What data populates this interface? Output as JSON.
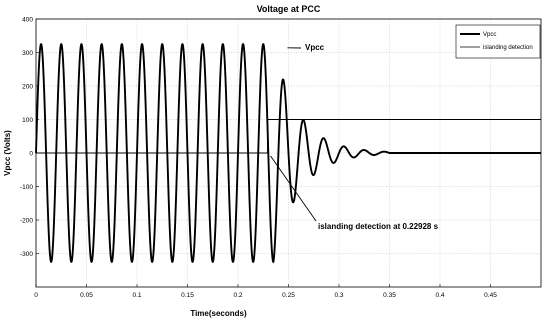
{
  "chart_data": {
    "type": "line",
    "title": "Voltage at PCC",
    "xlabel": "Time(seconds)",
    "ylabel": "Vpcc (Volts)",
    "xlim": [
      0,
      0.5
    ],
    "ylim": [
      -400,
      400
    ],
    "x_ticks": [
      "0",
      "0.05",
      "0.1",
      "0.15",
      "0.2",
      "0.25",
      "0.3",
      "0.35",
      "0.4",
      "0.45"
    ],
    "x_tick_values": [
      0,
      0.05,
      0.1,
      0.15,
      0.2,
      0.25,
      0.3,
      0.35,
      0.4,
      0.45
    ],
    "y_ticks": [
      "-300",
      "-200",
      "-100",
      "0",
      "100",
      "200",
      "300",
      "400"
    ],
    "y_tick_values": [
      -300,
      -200,
      -100,
      0,
      100,
      200,
      300,
      400
    ],
    "grid": true,
    "legend_position": "top-right",
    "series": [
      {
        "name": "Vpcc",
        "style": "thick",
        "amplitude": 325,
        "frequency_hz": 50,
        "decay_start_s": 0.235,
        "decay_time_constant_s": 0.025,
        "settle_time_s": 0.35
      },
      {
        "name": "islanding detection",
        "style": "thin",
        "step_time_s": 0.22928,
        "values_before": 0,
        "values_after": 100
      }
    ],
    "annotations": [
      {
        "text": "Vpcc",
        "target": [
          0.247,
          320
        ]
      },
      {
        "text": "islanding detection at 0.22928 s",
        "target": [
          0.2293,
          0
        ]
      }
    ]
  }
}
